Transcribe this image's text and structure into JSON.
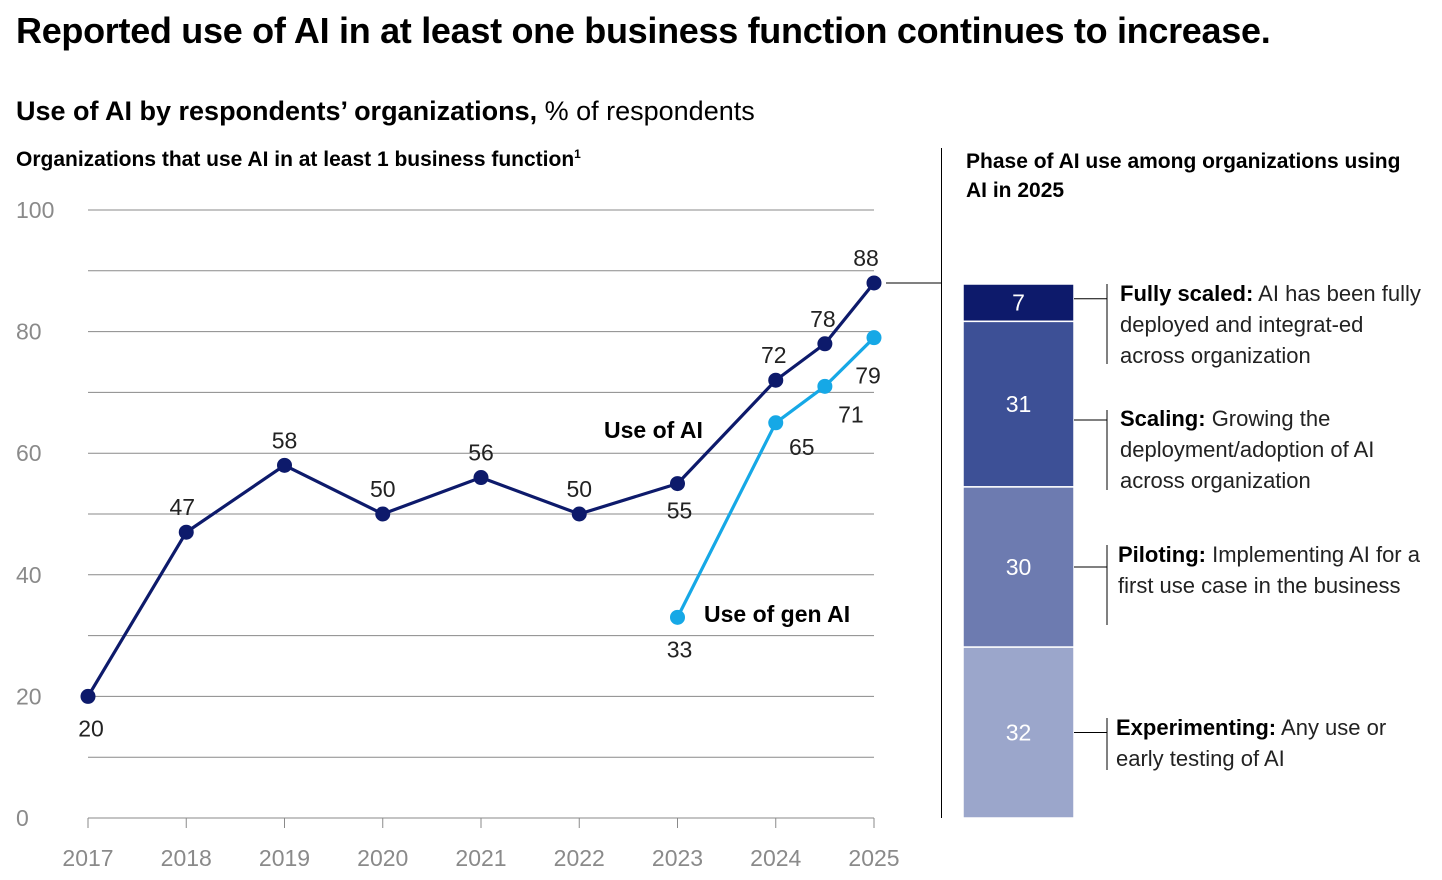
{
  "title": "Reported use of AI in at least one business function continues to increase.",
  "subtitle": {
    "bold": "Use of AI by respondents’ organizations,",
    "normal": " % of respondents"
  },
  "chart_data": [
    {
      "type": "line",
      "title": "Organizations that use AI in at least 1 business function",
      "title_footnote": "1",
      "x_tick_labels": [
        "2017",
        "2018",
        "2019",
        "2020",
        "2021",
        "2022",
        "2023",
        "2024",
        "2025"
      ],
      "ylim": [
        0,
        100
      ],
      "y_ticks": [
        0,
        20,
        40,
        60,
        80,
        100
      ],
      "grid": true,
      "series": [
        {
          "name": "Use of AI",
          "color": "#0d1a6b",
          "x": [
            2017,
            2018,
            2019,
            2020,
            2021,
            2022,
            2023,
            2024,
            2024.5,
            2025
          ],
          "values": [
            20,
            47,
            58,
            50,
            56,
            50,
            55,
            72,
            78,
            88
          ],
          "labels": [
            "20",
            "47",
            "58",
            "50",
            "56",
            "50",
            "55",
            "72",
            "78",
            "88"
          ]
        },
        {
          "name": "Use of gen AI",
          "color": "#16a8e6",
          "x": [
            2023,
            2024,
            2024.5,
            2025
          ],
          "values": [
            33,
            65,
            71,
            79
          ],
          "labels": [
            "33",
            "65",
            "71",
            "79"
          ]
        }
      ]
    },
    {
      "type": "bar",
      "stacked": true,
      "title": "Phase of AI use among organizations using AI in 2025",
      "segments": [
        {
          "label": "7",
          "value": 7,
          "color": "#0d1a6b",
          "name": "Fully scaled:",
          "desc": " AI has been fully deployed and integrat-ed across organization"
        },
        {
          "label": "31",
          "value": 31,
          "color": "#3d5096",
          "name": "Scaling:",
          "desc": " Growing the deployment/adoption of AI across organization"
        },
        {
          "label": "30",
          "value": 30,
          "color": "#6d7bb0",
          "name": "Piloting:",
          "desc": " Implementing AI for a first use case in the business"
        },
        {
          "label": "32",
          "value": 32,
          "color": "#9ba6cb",
          "name": "Experimenting:",
          "desc": " Any use or early testing of AI"
        }
      ]
    }
  ]
}
